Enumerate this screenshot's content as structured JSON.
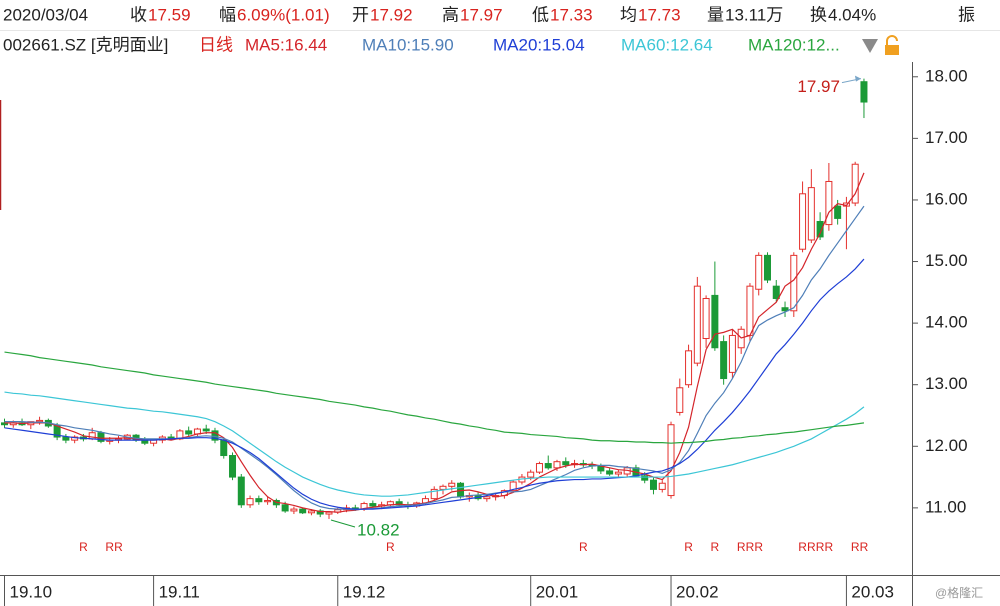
{
  "quote": {
    "date": "2020/03/04",
    "items": [
      {
        "label": "收",
        "value": "17.59",
        "color": "#d8231f"
      },
      {
        "label": "幅",
        "value": "6.09%(1.01)",
        "color": "#d8231f"
      },
      {
        "label": "开",
        "value": "17.92",
        "color": "#d8231f"
      },
      {
        "label": "高",
        "value": "17.97",
        "color": "#d8231f"
      },
      {
        "label": "低",
        "value": "17.33",
        "color": "#d8231f"
      },
      {
        "label": "均",
        "value": "17.73",
        "color": "#d8231f"
      },
      {
        "label": "量",
        "value": "13.11万",
        "color": "#222222"
      },
      {
        "label": "换",
        "value": "4.04%",
        "color": "#222222"
      },
      {
        "label": "振"
      }
    ],
    "symbol": "002661.SZ [克明面业]",
    "period": "日线"
  },
  "watermark": "@格隆汇",
  "chart_data": {
    "type": "candlestick",
    "categories": [
      "19.10",
      null,
      null,
      null,
      null,
      null,
      null,
      null,
      null,
      null,
      null,
      null,
      null,
      null,
      null,
      null,
      null,
      "19.11",
      null,
      null,
      null,
      null,
      null,
      null,
      null,
      null,
      null,
      null,
      null,
      null,
      null,
      null,
      null,
      null,
      null,
      null,
      null,
      null,
      "19.12",
      null,
      null,
      null,
      null,
      null,
      null,
      null,
      null,
      null,
      null,
      null,
      null,
      null,
      null,
      null,
      null,
      null,
      null,
      null,
      null,
      null,
      "20.01",
      null,
      null,
      null,
      null,
      null,
      null,
      null,
      null,
      null,
      null,
      null,
      null,
      null,
      null,
      null,
      "20.02",
      null,
      null,
      null,
      null,
      null,
      null,
      null,
      null,
      null,
      null,
      null,
      null,
      null,
      null,
      null,
      null,
      null,
      null,
      null,
      "20.03",
      null,
      null
    ],
    "open": [
      12.38,
      12.35,
      12.38,
      12.35,
      12.4,
      12.42,
      12.33,
      12.15,
      12.1,
      12.15,
      12.12,
      12.22,
      12.08,
      12.1,
      12.12,
      12.18,
      12.1,
      12.05,
      12.1,
      12.15,
      12.12,
      12.25,
      12.2,
      12.28,
      12.25,
      12.1,
      11.85,
      11.5,
      11.05,
      11.15,
      11.1,
      11.12,
      11.05,
      10.95,
      10.98,
      10.92,
      10.95,
      10.9,
      10.93,
      10.97,
      11.0,
      10.98,
      11.07,
      11.03,
      11.05,
      11.1,
      11.05,
      11.03,
      11.08,
      11.15,
      11.3,
      11.35,
      11.4,
      11.18,
      11.2,
      11.15,
      11.18,
      11.2,
      11.28,
      11.42,
      11.5,
      11.58,
      11.72,
      11.65,
      11.75,
      11.7,
      11.72,
      11.7,
      11.68,
      11.6,
      11.55,
      11.55,
      11.65,
      11.52,
      11.45,
      11.3,
      11.2,
      12.55,
      13.0,
      13.35,
      13.75,
      14.45,
      13.7,
      13.2,
      13.6,
      13.8,
      14.55,
      15.1,
      14.6,
      14.25,
      14.2,
      15.2,
      15.35,
      15.65,
      15.6,
      15.9,
      15.9,
      15.95,
      17.92
    ],
    "high": [
      12.45,
      12.42,
      12.45,
      12.4,
      12.48,
      12.45,
      12.38,
      12.2,
      12.18,
      12.2,
      12.3,
      12.25,
      12.15,
      12.17,
      12.2,
      12.2,
      12.15,
      12.12,
      12.18,
      12.2,
      12.28,
      12.32,
      12.3,
      12.35,
      12.3,
      12.12,
      11.9,
      11.55,
      11.2,
      11.2,
      11.18,
      11.15,
      11.1,
      11.02,
      11.0,
      10.98,
      10.98,
      10.95,
      11.0,
      11.05,
      11.05,
      11.1,
      11.12,
      11.1,
      11.12,
      11.15,
      11.1,
      11.1,
      11.2,
      11.35,
      11.38,
      11.45,
      11.42,
      11.25,
      11.25,
      11.22,
      11.25,
      11.3,
      11.45,
      11.55,
      11.62,
      11.75,
      11.85,
      11.78,
      11.82,
      11.78,
      11.78,
      11.75,
      11.72,
      11.65,
      11.62,
      11.68,
      11.7,
      11.58,
      11.5,
      11.45,
      12.4,
      13.1,
      13.65,
      14.75,
      14.45,
      15.0,
      13.8,
      13.9,
      13.95,
      14.65,
      15.15,
      15.15,
      14.7,
      14.35,
      15.15,
      16.3,
      16.5,
      15.8,
      16.6,
      16.0,
      16.05,
      16.62,
      17.97
    ],
    "low": [
      12.3,
      12.3,
      12.33,
      12.28,
      12.35,
      12.3,
      12.1,
      12.05,
      12.05,
      12.08,
      12.1,
      12.05,
      12.03,
      12.05,
      12.1,
      12.07,
      12.02,
      12.0,
      12.05,
      12.1,
      12.1,
      12.15,
      12.15,
      12.2,
      12.05,
      11.8,
      11.45,
      11.0,
      11.0,
      11.05,
      11.05,
      11.0,
      10.92,
      10.9,
      10.9,
      10.88,
      10.85,
      10.82,
      10.9,
      10.93,
      10.95,
      10.95,
      11.0,
      10.98,
      11.0,
      11.02,
      10.98,
      11.0,
      11.05,
      11.12,
      11.22,
      11.28,
      11.15,
      11.1,
      11.12,
      11.1,
      11.12,
      11.15,
      11.25,
      11.38,
      11.45,
      11.55,
      11.62,
      11.6,
      11.65,
      11.65,
      11.66,
      11.63,
      11.55,
      11.52,
      11.5,
      11.5,
      11.5,
      11.4,
      11.22,
      11.25,
      11.15,
      12.5,
      12.95,
      13.3,
      13.6,
      13.55,
      13.0,
      13.1,
      13.5,
      13.7,
      14.45,
      14.65,
      14.35,
      14.1,
      14.1,
      15.15,
      15.3,
      15.35,
      15.5,
      15.6,
      15.2,
      15.9,
      17.33
    ],
    "close": [
      12.35,
      12.38,
      12.35,
      12.4,
      12.42,
      12.33,
      12.15,
      12.1,
      12.15,
      12.12,
      12.22,
      12.08,
      12.1,
      12.12,
      12.18,
      12.1,
      12.05,
      12.1,
      12.15,
      12.12,
      12.25,
      12.2,
      12.28,
      12.25,
      12.1,
      11.85,
      11.5,
      11.05,
      11.15,
      11.1,
      11.12,
      11.05,
      10.95,
      10.98,
      10.92,
      10.95,
      10.9,
      10.93,
      10.97,
      11.0,
      10.98,
      11.07,
      11.03,
      11.05,
      11.1,
      11.05,
      11.03,
      11.08,
      11.15,
      11.3,
      11.35,
      11.4,
      11.18,
      11.2,
      11.15,
      11.18,
      11.2,
      11.28,
      11.42,
      11.5,
      11.58,
      11.72,
      11.65,
      11.75,
      11.7,
      11.72,
      11.7,
      11.68,
      11.6,
      11.55,
      11.58,
      11.65,
      11.52,
      11.45,
      11.3,
      11.4,
      12.35,
      12.95,
      13.55,
      14.6,
      14.4,
      13.6,
      13.1,
      13.8,
      13.9,
      14.6,
      15.1,
      14.7,
      14.4,
      14.2,
      15.1,
      16.1,
      16.2,
      15.4,
      16.3,
      15.7,
      15.95,
      16.58,
      17.59
    ],
    "up_color": "#e4302c",
    "down_color": "#1b9a37",
    "series": [
      {
        "name": "MA5:16.44",
        "color": "#d4252b",
        "values": [
          12.38,
          12.38,
          12.37,
          12.38,
          12.38,
          12.38,
          12.33,
          12.28,
          12.23,
          12.17,
          12.15,
          12.13,
          12.13,
          12.13,
          12.14,
          12.12,
          12.11,
          12.11,
          12.12,
          12.1,
          12.13,
          12.16,
          12.2,
          12.22,
          12.22,
          12.14,
          11.98,
          11.75,
          11.53,
          11.33,
          11.18,
          11.09,
          11.07,
          11.04,
          11.0,
          10.97,
          10.94,
          10.94,
          10.93,
          10.95,
          10.96,
          10.99,
          11.01,
          11.03,
          11.05,
          11.06,
          11.05,
          11.06,
          11.08,
          11.12,
          11.18,
          11.26,
          11.28,
          11.29,
          11.26,
          11.22,
          11.18,
          11.2,
          11.25,
          11.32,
          11.4,
          11.5,
          11.57,
          11.64,
          11.68,
          11.71,
          11.7,
          11.71,
          11.68,
          11.65,
          11.62,
          11.61,
          11.58,
          11.55,
          11.5,
          11.46,
          11.6,
          11.9,
          12.31,
          12.97,
          13.57,
          13.82,
          13.85,
          13.9,
          13.76,
          13.8,
          14.1,
          14.22,
          14.34,
          14.6,
          14.7,
          14.9,
          15.2,
          15.46,
          15.8,
          15.94,
          15.91,
          16.1,
          16.44
        ]
      },
      {
        "name": "MA10:15.90",
        "color": "#4f7fb8",
        "values": [
          12.4,
          12.4,
          12.4,
          12.39,
          12.39,
          12.38,
          12.35,
          12.33,
          12.3,
          12.28,
          12.26,
          12.23,
          12.2,
          12.18,
          12.15,
          12.13,
          12.12,
          12.12,
          12.12,
          12.12,
          12.13,
          12.14,
          12.16,
          12.17,
          12.16,
          12.13,
          12.07,
          11.97,
          11.87,
          11.77,
          11.66,
          11.54,
          11.41,
          11.28,
          11.17,
          11.08,
          11.02,
          10.99,
          10.98,
          10.98,
          10.97,
          10.98,
          10.99,
          11.0,
          11.02,
          11.03,
          11.04,
          11.05,
          11.07,
          11.1,
          11.13,
          11.17,
          11.18,
          11.2,
          11.21,
          11.22,
          11.24,
          11.26,
          11.26,
          11.27,
          11.3,
          11.36,
          11.42,
          11.48,
          11.54,
          11.61,
          11.65,
          11.68,
          11.69,
          11.69,
          11.67,
          11.66,
          11.64,
          11.62,
          11.6,
          11.56,
          11.62,
          11.74,
          11.93,
          12.21,
          12.5,
          12.7,
          12.87,
          13.1,
          13.37,
          13.7,
          13.96,
          14.05,
          14.12,
          14.18,
          14.25,
          14.45,
          14.7,
          14.88,
          15.1,
          15.3,
          15.5,
          15.7,
          15.9
        ]
      },
      {
        "name": "MA20:15.04",
        "color": "#1f3fd6",
        "values": [
          12.3,
          12.28,
          12.26,
          12.24,
          12.22,
          12.2,
          12.18,
          12.16,
          12.14,
          12.13,
          12.12,
          12.11,
          12.1,
          12.1,
          12.1,
          12.1,
          12.1,
          12.1,
          12.11,
          12.12,
          12.13,
          12.13,
          12.14,
          12.14,
          12.13,
          12.1,
          12.05,
          11.98,
          11.9,
          11.8,
          11.68,
          11.56,
          11.44,
          11.32,
          11.22,
          11.14,
          11.08,
          11.04,
          11.01,
          10.99,
          10.98,
          10.98,
          10.98,
          10.99,
          11.0,
          11.01,
          11.02,
          11.03,
          11.05,
          11.07,
          11.09,
          11.11,
          11.13,
          11.15,
          11.17,
          11.2,
          11.23,
          11.26,
          11.3,
          11.33,
          11.37,
          11.4,
          11.42,
          11.44,
          11.45,
          11.46,
          11.46,
          11.47,
          11.47,
          11.48,
          11.49,
          11.5,
          11.52,
          11.55,
          11.58,
          11.6,
          11.65,
          11.72,
          11.82,
          11.95,
          12.1,
          12.26,
          12.4,
          12.55,
          12.72,
          12.9,
          13.1,
          13.3,
          13.5,
          13.65,
          13.82,
          14.0,
          14.2,
          14.38,
          14.52,
          14.64,
          14.75,
          14.88,
          15.04
        ]
      },
      {
        "name": "MA60:12.64",
        "color": "#3cc6d6",
        "values": [
          12.88,
          12.86,
          12.85,
          12.83,
          12.82,
          12.8,
          12.78,
          12.76,
          12.74,
          12.72,
          12.7,
          12.68,
          12.66,
          12.64,
          12.62,
          12.61,
          12.59,
          12.57,
          12.56,
          12.54,
          12.52,
          12.5,
          12.48,
          12.45,
          12.4,
          12.33,
          12.25,
          12.15,
          12.05,
          11.95,
          11.85,
          11.75,
          11.66,
          11.58,
          11.5,
          11.44,
          11.38,
          11.33,
          11.29,
          11.26,
          11.23,
          11.21,
          11.2,
          11.19,
          11.19,
          11.2,
          11.21,
          11.23,
          11.25,
          11.27,
          11.29,
          11.31,
          11.33,
          11.35,
          11.37,
          11.39,
          11.41,
          11.43,
          11.45,
          11.47,
          11.48,
          11.49,
          11.5,
          11.5,
          11.5,
          11.5,
          11.5,
          11.5,
          11.5,
          11.5,
          11.5,
          11.5,
          11.5,
          11.5,
          11.5,
          11.5,
          11.51,
          11.53,
          11.55,
          11.58,
          11.61,
          11.64,
          11.67,
          11.7,
          11.74,
          11.78,
          11.82,
          11.86,
          11.9,
          11.95,
          12.0,
          12.06,
          12.12,
          12.2,
          12.28,
          12.36,
          12.44,
          12.53,
          12.64
        ]
      },
      {
        "name": "MA120:12...",
        "color": "#2aa63f",
        "values": [
          13.53,
          13.51,
          13.49,
          13.47,
          13.44,
          13.42,
          13.4,
          13.38,
          13.36,
          13.34,
          13.32,
          13.29,
          13.27,
          13.25,
          13.23,
          13.21,
          13.19,
          13.16,
          13.14,
          13.12,
          13.1,
          13.08,
          13.06,
          13.04,
          13.01,
          12.99,
          12.97,
          12.95,
          12.93,
          12.91,
          12.89,
          12.86,
          12.84,
          12.82,
          12.8,
          12.78,
          12.76,
          12.73,
          12.71,
          12.69,
          12.67,
          12.64,
          12.62,
          12.59,
          12.57,
          12.54,
          12.51,
          12.49,
          12.46,
          12.44,
          12.41,
          12.38,
          12.36,
          12.33,
          12.31,
          12.28,
          12.26,
          12.23,
          12.22,
          12.21,
          12.19,
          12.18,
          12.17,
          12.16,
          12.14,
          12.13,
          12.12,
          12.1,
          12.09,
          12.09,
          12.08,
          12.08,
          12.07,
          12.07,
          12.06,
          12.06,
          12.05,
          12.06,
          12.06,
          12.07,
          12.08,
          12.1,
          12.11,
          12.13,
          12.14,
          12.16,
          12.17,
          12.19,
          12.2,
          12.22,
          12.23,
          12.25,
          12.27,
          12.29,
          12.31,
          12.33,
          12.34,
          12.36,
          12.38
        ]
      }
    ],
    "r_marks": [
      null,
      null,
      null,
      null,
      null,
      null,
      null,
      null,
      null,
      "R",
      null,
      null,
      "R",
      "R",
      null,
      null,
      null,
      null,
      null,
      null,
      null,
      null,
      null,
      null,
      null,
      null,
      null,
      null,
      null,
      null,
      null,
      null,
      null,
      null,
      null,
      null,
      null,
      null,
      null,
      null,
      null,
      null,
      null,
      null,
      "R",
      null,
      null,
      null,
      null,
      null,
      null,
      null,
      null,
      null,
      null,
      null,
      null,
      null,
      null,
      null,
      null,
      null,
      null,
      null,
      null,
      null,
      "R",
      null,
      null,
      null,
      null,
      null,
      null,
      null,
      null,
      null,
      null,
      null,
      "R",
      null,
      null,
      "R",
      null,
      null,
      "R",
      "R",
      "R",
      null,
      null,
      null,
      null,
      "R",
      "R",
      "R",
      "R",
      null,
      null,
      "R",
      "R"
    ],
    "low_mark": 10.82,
    "high_mark": 17.97,
    "ylim": [
      9.91,
      18.24
    ],
    "yticks": [
      {
        "value": 11,
        "label": "11.00"
      },
      {
        "value": 12,
        "label": "12.00"
      },
      {
        "value": 13,
        "label": "13.00"
      },
      {
        "value": 14,
        "label": "14.00"
      },
      {
        "value": 15,
        "label": "15.00"
      },
      {
        "value": 16,
        "label": "16.00"
      },
      {
        "value": 17,
        "label": "17.00"
      },
      {
        "value": 18,
        "label": "18.00"
      }
    ]
  }
}
